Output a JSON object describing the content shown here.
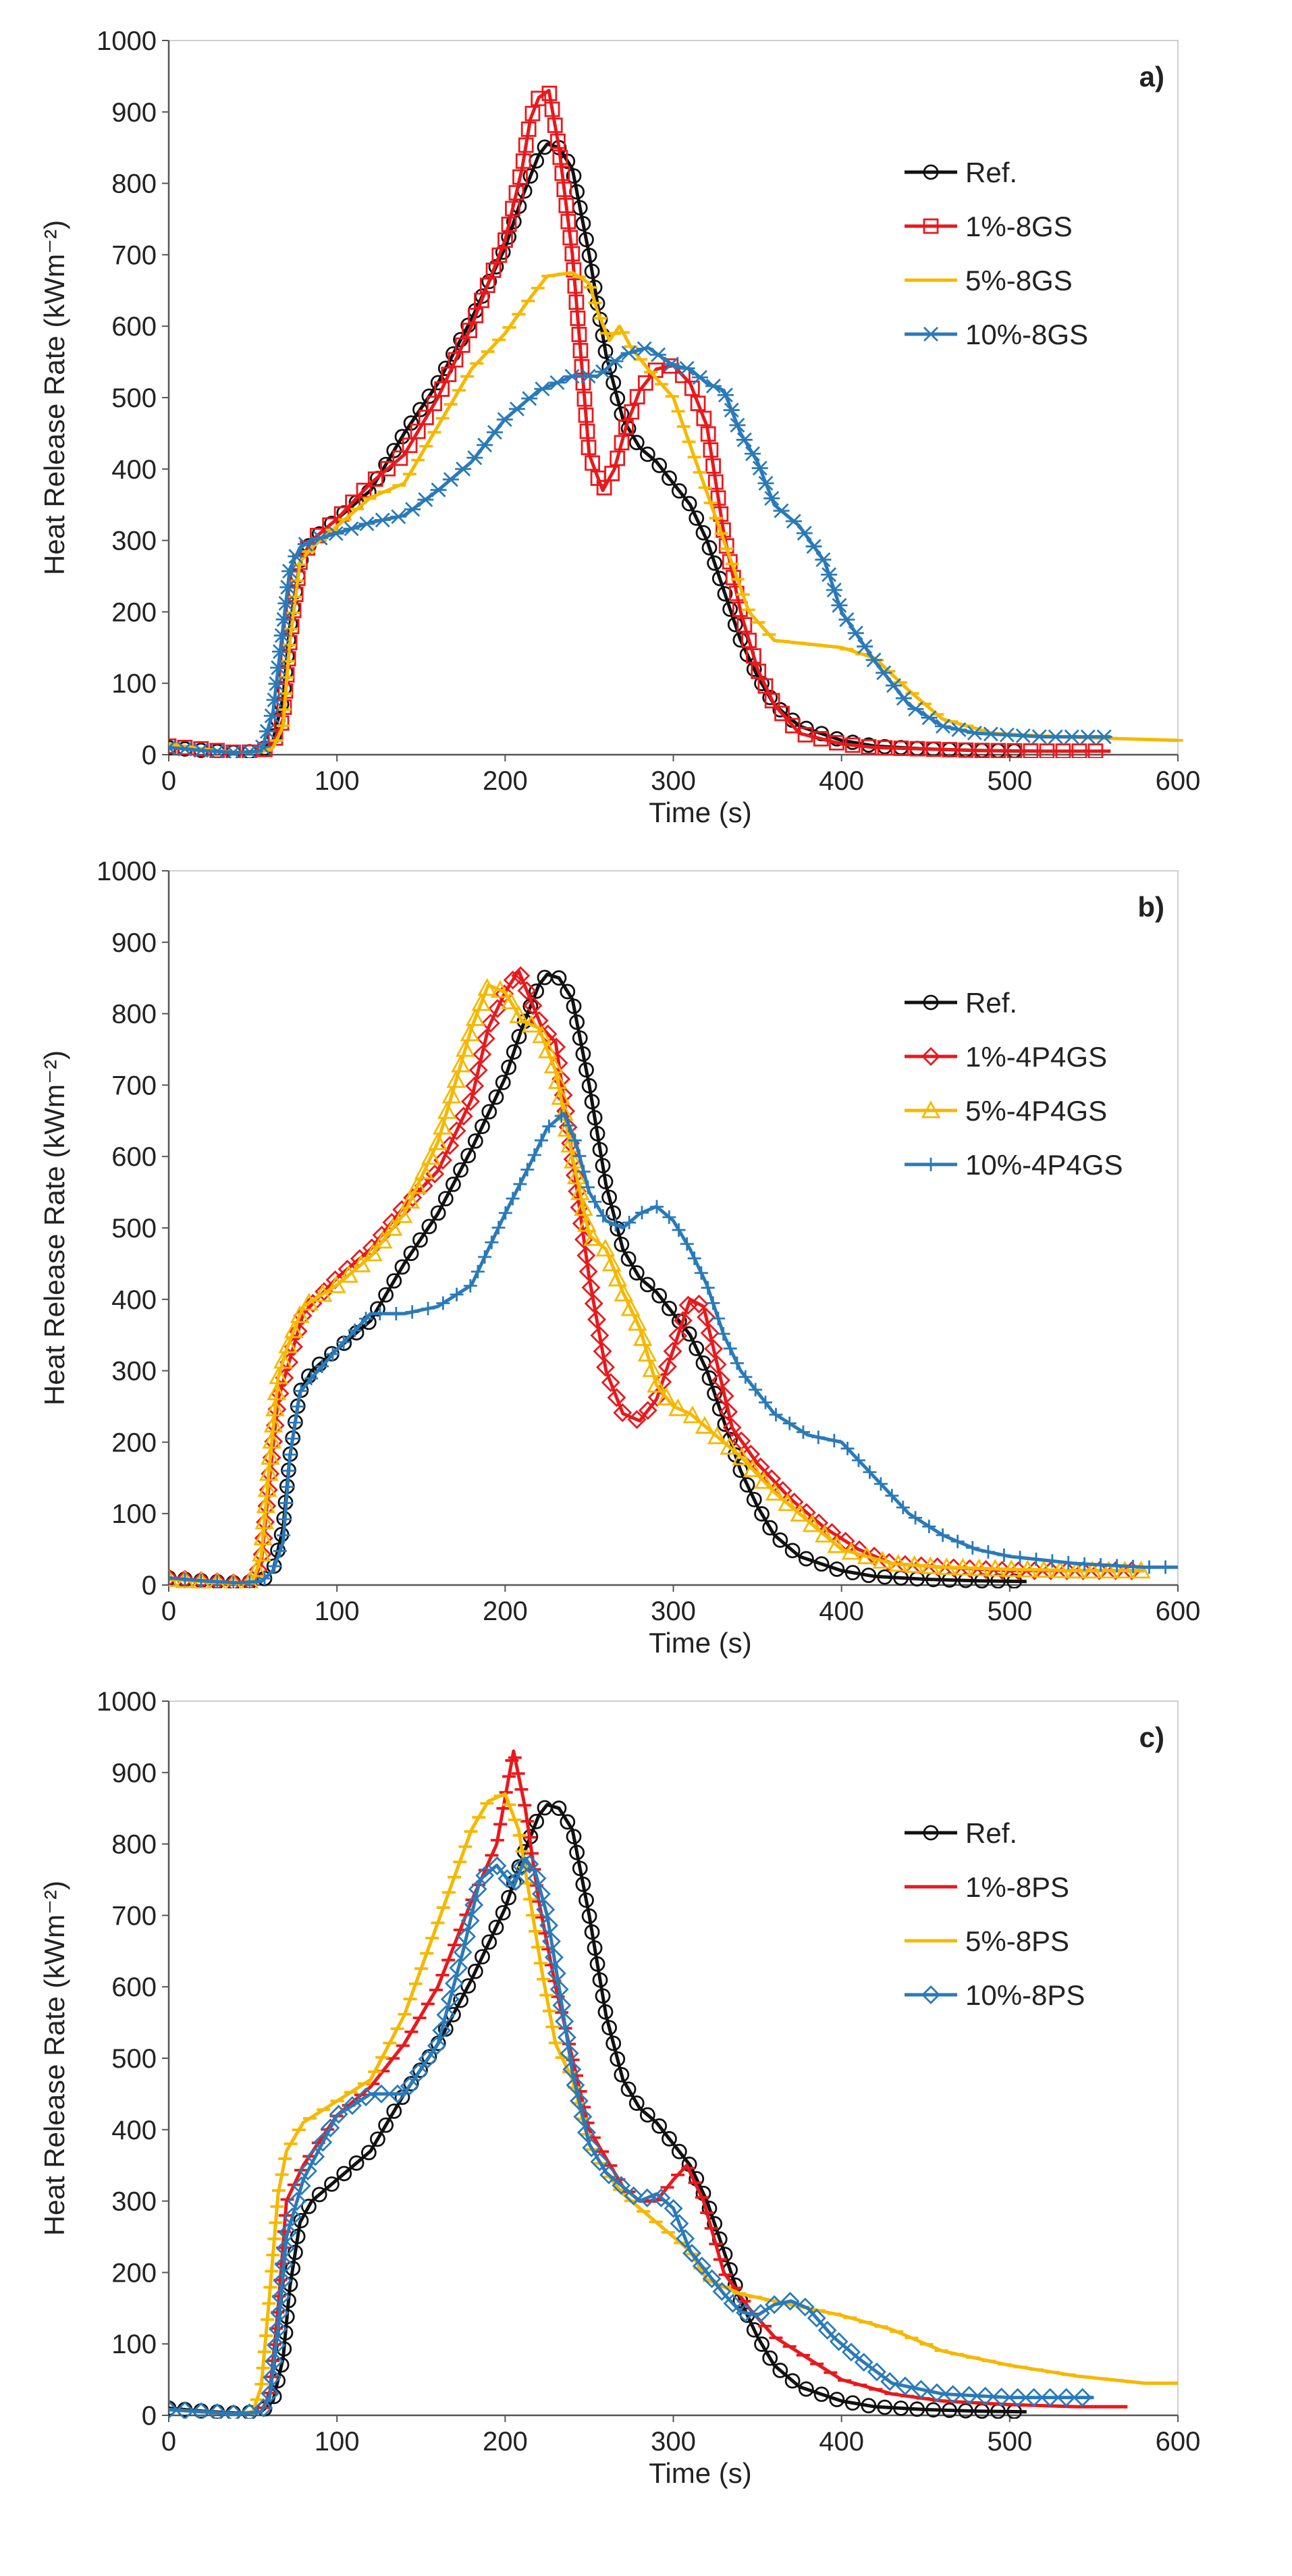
{
  "chart_data": [
    {
      "type": "line",
      "panel_label": "a)",
      "xlabel": "Time (s)",
      "ylabel": "Heat Release Rate (kWm⁻²)",
      "xlim": [
        0,
        600
      ],
      "ylim": [
        0,
        1000
      ],
      "xticks": [
        0,
        100,
        200,
        300,
        400,
        500,
        600
      ],
      "yticks": [
        0,
        100,
        200,
        300,
        400,
        500,
        600,
        700,
        800,
        900,
        1000
      ],
      "legend_position": "top-right",
      "series": [
        {
          "name": "Ref.",
          "color": "#111111",
          "marker": "circle",
          "x": [
            0,
            20,
            40,
            55,
            62,
            68,
            72,
            78,
            85,
            100,
            120,
            140,
            160,
            180,
            200,
            210,
            220,
            225,
            232,
            240,
            250,
            260,
            270,
            280,
            290,
            300,
            310,
            320,
            330,
            340,
            350,
            360,
            375,
            400,
            420,
            450,
            480,
            510
          ],
          "y": [
            10,
            6,
            3,
            5,
            20,
            80,
            180,
            270,
            300,
            330,
            370,
            450,
            520,
            610,
            710,
            780,
            840,
            855,
            850,
            820,
            700,
            560,
            470,
            430,
            410,
            380,
            350,
            300,
            230,
            160,
            110,
            70,
            40,
            20,
            12,
            8,
            6,
            5
          ]
        },
        {
          "name": "1%-8GS",
          "color": "#e8191d",
          "marker": "square",
          "x": [
            0,
            20,
            40,
            55,
            62,
            68,
            72,
            78,
            85,
            100,
            120,
            140,
            160,
            180,
            200,
            210,
            215,
            220,
            226,
            232,
            240,
            245,
            250,
            258,
            265,
            272,
            280,
            290,
            300,
            310,
            320,
            330,
            340,
            350,
            360,
            375,
            400,
            420,
            450,
            480,
            520,
            560
          ],
          "y": [
            12,
            8,
            3,
            4,
            15,
            50,
            160,
            270,
            300,
            330,
            380,
            420,
            500,
            600,
            720,
            820,
            890,
            920,
            930,
            850,
            700,
            560,
            420,
            370,
            400,
            460,
            510,
            540,
            545,
            520,
            460,
            310,
            200,
            120,
            70,
            30,
            15,
            10,
            8,
            6,
            5,
            5
          ]
        },
        {
          "name": "5%-8GS",
          "color": "#f5b800",
          "marker": "dash",
          "x": [
            0,
            20,
            40,
            55,
            62,
            68,
            72,
            78,
            85,
            100,
            120,
            140,
            160,
            180,
            200,
            215,
            225,
            240,
            250,
            255,
            262,
            268,
            275,
            285,
            300,
            315,
            330,
            345,
            360,
            380,
            400,
            420,
            440,
            460,
            490,
            530,
            600
          ],
          "y": [
            15,
            8,
            3,
            4,
            10,
            40,
            160,
            270,
            290,
            320,
            360,
            380,
            460,
            540,
            590,
            640,
            670,
            675,
            660,
            620,
            580,
            600,
            570,
            540,
            500,
            400,
            300,
            200,
            160,
            155,
            150,
            135,
            90,
            50,
            30,
            25,
            20
          ]
        },
        {
          "name": "10%-8GS",
          "color": "#2a7ab8",
          "marker": "asterisk",
          "x": [
            0,
            20,
            40,
            55,
            62,
            68,
            72,
            78,
            85,
            100,
            120,
            140,
            160,
            180,
            200,
            220,
            240,
            255,
            270,
            285,
            300,
            310,
            320,
            330,
            340,
            350,
            360,
            375,
            390,
            400,
            420,
            440,
            460,
            480,
            520,
            560
          ],
          "y": [
            10,
            6,
            3,
            5,
            60,
            180,
            260,
            290,
            300,
            310,
            325,
            335,
            370,
            410,
            470,
            510,
            530,
            530,
            560,
            570,
            545,
            540,
            520,
            510,
            450,
            410,
            350,
            320,
            270,
            200,
            130,
            70,
            40,
            30,
            25,
            25
          ]
        }
      ]
    },
    {
      "type": "line",
      "panel_label": "b)",
      "xlabel": "Time (s)",
      "ylabel": "Heat Release Rate (kWm⁻²)",
      "xlim": [
        0,
        600
      ],
      "ylim": [
        0,
        1000
      ],
      "xticks": [
        0,
        100,
        200,
        300,
        400,
        500,
        600
      ],
      "yticks": [
        0,
        100,
        200,
        300,
        400,
        500,
        600,
        700,
        800,
        900,
        1000
      ],
      "legend_position": "top-right",
      "series": [
        {
          "name": "Ref.",
          "color": "#111111",
          "marker": "circle",
          "x": [
            0,
            20,
            40,
            55,
            62,
            68,
            72,
            78,
            85,
            100,
            120,
            140,
            160,
            180,
            200,
            210,
            220,
            225,
            232,
            240,
            250,
            260,
            270,
            280,
            290,
            300,
            310,
            320,
            330,
            340,
            350,
            360,
            375,
            400,
            420,
            450,
            480,
            510
          ],
          "y": [
            10,
            6,
            3,
            5,
            20,
            80,
            180,
            270,
            300,
            330,
            370,
            450,
            520,
            610,
            710,
            780,
            840,
            855,
            850,
            820,
            700,
            560,
            470,
            430,
            410,
            380,
            350,
            300,
            230,
            160,
            110,
            70,
            40,
            20,
            12,
            8,
            6,
            5
          ]
        },
        {
          "name": "1%-4P4GS",
          "color": "#e8191d",
          "marker": "diamond",
          "x": [
            0,
            20,
            40,
            50,
            55,
            60,
            65,
            70,
            80,
            100,
            120,
            140,
            160,
            180,
            190,
            200,
            208,
            215,
            222,
            230,
            240,
            250,
            260,
            270,
            280,
            290,
            300,
            310,
            318,
            325,
            335,
            350,
            370,
            390,
            410,
            430,
            460,
            500,
            540,
            580
          ],
          "y": [
            10,
            6,
            3,
            5,
            30,
            150,
            260,
            300,
            380,
            430,
            470,
            530,
            580,
            680,
            780,
            830,
            860,
            820,
            780,
            760,
            600,
            430,
            300,
            240,
            230,
            260,
            330,
            400,
            390,
            320,
            220,
            170,
            120,
            80,
            50,
            30,
            25,
            20,
            20,
            20
          ]
        },
        {
          "name": "5%-4P4GS",
          "color": "#f5b800",
          "marker": "triangle",
          "x": [
            0,
            20,
            40,
            50,
            55,
            60,
            65,
            70,
            80,
            100,
            120,
            140,
            160,
            170,
            180,
            190,
            200,
            210,
            220,
            230,
            240,
            250,
            260,
            270,
            280,
            290,
            300,
            310,
            320,
            340,
            360,
            380,
            400,
            430,
            460,
            500,
            540,
            580
          ],
          "y": [
            8,
            5,
            2,
            5,
            40,
            170,
            290,
            330,
            390,
            420,
            460,
            520,
            620,
            700,
            780,
            840,
            830,
            790,
            780,
            720,
            600,
            490,
            470,
            410,
            360,
            280,
            250,
            240,
            220,
            180,
            130,
            90,
            50,
            30,
            25,
            22,
            20,
            20
          ]
        },
        {
          "name": "10%-4P4GS",
          "color": "#2a7ab8",
          "marker": "plus",
          "x": [
            0,
            20,
            40,
            55,
            62,
            68,
            72,
            78,
            85,
            100,
            120,
            140,
            160,
            180,
            200,
            215,
            225,
            235,
            242,
            250,
            260,
            270,
            280,
            290,
            300,
            310,
            320,
            330,
            340,
            360,
            380,
            400,
            420,
            440,
            460,
            480,
            500,
            540,
            580,
            600
          ],
          "y": [
            10,
            6,
            3,
            5,
            20,
            60,
            180,
            270,
            290,
            330,
            380,
            380,
            390,
            420,
            520,
            590,
            640,
            660,
            620,
            550,
            510,
            500,
            520,
            530,
            510,
            470,
            420,
            350,
            300,
            240,
            210,
            200,
            150,
            100,
            70,
            50,
            40,
            30,
            25,
            25
          ]
        }
      ]
    },
    {
      "type": "line",
      "panel_label": "c)",
      "xlabel": "Time (s)",
      "ylabel": "Heat Release Rate (kWm⁻²)",
      "xlim": [
        0,
        600
      ],
      "ylim": [
        0,
        1000
      ],
      "xticks": [
        0,
        100,
        200,
        300,
        400,
        500,
        600
      ],
      "yticks": [
        0,
        100,
        200,
        300,
        400,
        500,
        600,
        700,
        800,
        900,
        1000
      ],
      "legend_position": "top-right",
      "series": [
        {
          "name": "Ref.",
          "color": "#111111",
          "marker": "circle",
          "x": [
            0,
            20,
            40,
            55,
            62,
            68,
            72,
            78,
            85,
            100,
            120,
            140,
            160,
            180,
            200,
            210,
            220,
            225,
            232,
            240,
            250,
            260,
            270,
            280,
            290,
            300,
            310,
            320,
            330,
            340,
            350,
            360,
            375,
            400,
            420,
            450,
            480,
            510
          ],
          "y": [
            10,
            6,
            3,
            5,
            20,
            80,
            180,
            270,
            300,
            330,
            370,
            450,
            520,
            610,
            710,
            780,
            840,
            855,
            850,
            820,
            700,
            560,
            470,
            430,
            410,
            380,
            350,
            300,
            230,
            160,
            110,
            70,
            40,
            20,
            12,
            8,
            6,
            5
          ]
        },
        {
          "name": "1%-8PS",
          "color": "#e8191d",
          "marker": "dash",
          "x": [
            0,
            20,
            40,
            55,
            60,
            65,
            70,
            80,
            100,
            120,
            140,
            160,
            180,
            195,
            205,
            212,
            220,
            230,
            240,
            250,
            260,
            270,
            280,
            290,
            300,
            308,
            318,
            330,
            345,
            360,
            380,
            400,
            430,
            460,
            500,
            540,
            570
          ],
          "y": [
            8,
            5,
            2,
            5,
            30,
            150,
            300,
            350,
            420,
            460,
            520,
            600,
            720,
            800,
            930,
            850,
            720,
            600,
            500,
            400,
            360,
            320,
            300,
            300,
            330,
            350,
            300,
            200,
            150,
            110,
            80,
            50,
            30,
            20,
            15,
            12,
            12
          ]
        },
        {
          "name": "5%-8PS",
          "color": "#f5b800",
          "marker": "dash",
          "x": [
            0,
            20,
            40,
            50,
            55,
            60,
            65,
            70,
            80,
            100,
            120,
            140,
            160,
            180,
            190,
            200,
            208,
            215,
            222,
            230,
            240,
            250,
            260,
            270,
            280,
            290,
            300,
            310,
            320,
            340,
            360,
            380,
            400,
            430,
            460,
            500,
            540,
            580,
            600
          ],
          "y": [
            8,
            5,
            2,
            5,
            40,
            170,
            310,
            370,
            410,
            440,
            470,
            560,
            690,
            820,
            860,
            870,
            820,
            720,
            620,
            520,
            470,
            380,
            340,
            310,
            290,
            270,
            250,
            230,
            190,
            170,
            160,
            150,
            140,
            120,
            90,
            70,
            55,
            45,
            45
          ]
        },
        {
          "name": "10%-8PS",
          "color": "#2a7ab8",
          "marker": "diamond",
          "x": [
            0,
            20,
            40,
            55,
            60,
            65,
            70,
            80,
            100,
            120,
            140,
            160,
            175,
            185,
            195,
            205,
            212,
            218,
            225,
            232,
            240,
            250,
            260,
            270,
            280,
            290,
            300,
            310,
            320,
            330,
            340,
            350,
            360,
            370,
            380,
            395,
            410,
            430,
            460,
            500,
            550
          ],
          "y": [
            8,
            5,
            2,
            5,
            25,
            120,
            250,
            330,
            420,
            450,
            450,
            520,
            650,
            750,
            770,
            740,
            780,
            760,
            700,
            600,
            480,
            380,
            340,
            320,
            300,
            310,
            290,
            230,
            200,
            170,
            145,
            140,
            155,
            160,
            150,
            110,
            80,
            45,
            30,
            25,
            25
          ]
        }
      ]
    }
  ]
}
